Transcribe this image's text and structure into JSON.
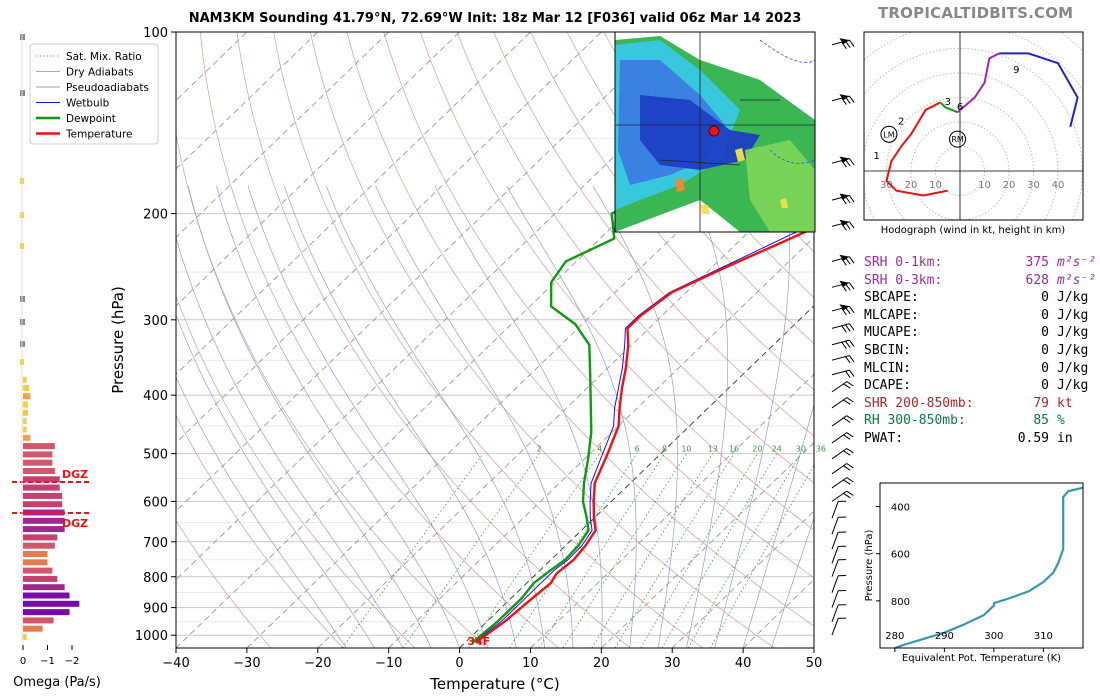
{
  "brand": "TROPICALTIDBITS.COM",
  "stats": [
    {
      "label": "SRH 0-1km:",
      "value": "375",
      "unit": "m²s⁻²",
      "color": "#9b2d9b",
      "italic": true
    },
    {
      "label": "SRH 0-3km:",
      "value": "628",
      "unit": "m²s⁻²",
      "color": "#9b2d9b",
      "italic": true
    },
    {
      "label": "SBCAPE:",
      "value": "0",
      "unit": "J/kg",
      "color": "#000000"
    },
    {
      "label": "MLCAPE:",
      "value": "0",
      "unit": "J/kg",
      "color": "#000000"
    },
    {
      "label": "MUCAPE:",
      "value": "0",
      "unit": "J/kg",
      "color": "#000000"
    },
    {
      "label": "SBCIN:",
      "value": "0",
      "unit": "J/kg",
      "color": "#000000"
    },
    {
      "label": "MLCIN:",
      "value": "0",
      "unit": "J/kg",
      "color": "#000000"
    },
    {
      "label": "DCAPE:",
      "value": "0",
      "unit": "J/kg",
      "color": "#000000"
    },
    {
      "label": "SHR 200-850mb:",
      "value": "79",
      "unit": "kt",
      "color": "#a52a2a"
    },
    {
      "label": "RH 300-850mb:",
      "value": "85",
      "unit": "%",
      "color": "#0a7a40"
    },
    {
      "label": "PWAT:",
      "value": "0.59",
      "unit": "in",
      "color": "#000000"
    }
  ],
  "chart_data": [
    {
      "type": "line",
      "title": "NAM3KM Sounding 41.79°N, 72.69°W Init: 18z Mar 12 [F036] valid 06z Mar 14 2023",
      "xlabel": "Temperature (°C)",
      "ylabel": "Pressure (hPa)",
      "x_ticks": [
        -40,
        -30,
        -20,
        -10,
        0,
        10,
        20,
        30,
        40,
        50
      ],
      "y_ticks": [
        100,
        200,
        300,
        400,
        500,
        600,
        700,
        800,
        900,
        1000
      ],
      "xlim": [
        -40,
        50
      ],
      "ylim": [
        1050,
        100
      ],
      "y_scale": "log",
      "grid": true,
      "legend": [
        "Sat. Mix. Ratio",
        "Dry Adiabats",
        "Pseudoadiabats",
        "Wetbulb",
        "Dewpoint",
        "Temperature"
      ],
      "legend_position": "top-left",
      "colors": {
        "temperature": "#ee1111",
        "dewpoint": "#119911",
        "wetbulb": "#1111ee",
        "dry_adiabat": "#d69a9a",
        "pseudoadiabat": "#9a9ad8",
        "mixing_ratio": "#3a9a3a"
      },
      "mixing_ratio_labels": [
        "2",
        "4",
        "6",
        "8",
        "10",
        "13",
        "16",
        "20",
        "24",
        "30",
        "36"
      ],
      "surface_label": "34F",
      "series": [
        {
          "name": "Temperature",
          "points": [
            [
              1.5,
              1025
            ],
            [
              2.5,
              950
            ],
            [
              3.0,
              870
            ],
            [
              3.4,
              820
            ],
            [
              2.8,
              790
            ],
            [
              3.2,
              750
            ],
            [
              2.8,
              710
            ],
            [
              2.0,
              670
            ],
            [
              0.0,
              640
            ],
            [
              -2.5,
              600
            ],
            [
              -5.0,
              560
            ],
            [
              -7.5,
              500
            ],
            [
              -10.0,
              450
            ],
            [
              -12.5,
              420
            ],
            [
              -15.0,
              390
            ],
            [
              -17.5,
              360
            ],
            [
              -20.5,
              330
            ],
            [
              -23.0,
              310
            ],
            [
              -23.0,
              295
            ],
            [
              -22.0,
              270
            ],
            [
              -18.0,
              245
            ],
            [
              -10.0,
              205
            ],
            [
              -7.0,
              180
            ],
            [
              -4.0,
              160
            ],
            [
              -3.0,
              145
            ],
            [
              0.0,
              125
            ],
            [
              2.0,
              110
            ],
            [
              3.0,
              100
            ]
          ]
        },
        {
          "name": "Dewpoint",
          "points": [
            [
              1.0,
              1025
            ],
            [
              1.5,
              950
            ],
            [
              1.5,
              870
            ],
            [
              1.0,
              820
            ],
            [
              1.5,
              780
            ],
            [
              2.0,
              750
            ],
            [
              1.8,
              710
            ],
            [
              1.0,
              670
            ],
            [
              -1.0,
              640
            ],
            [
              -4.0,
              600
            ],
            [
              -6.5,
              560
            ],
            [
              -9.5,
              510
            ],
            [
              -13.0,
              460
            ],
            [
              -17.5,
              410
            ],
            [
              -21.5,
              370
            ],
            [
              -26.0,
              330
            ],
            [
              -31.0,
              305
            ],
            [
              -37.0,
              285
            ],
            [
              -40.5,
              260
            ],
            [
              -41.5,
              240
            ],
            [
              -38.0,
              220
            ],
            [
              -42.0,
              200
            ],
            [
              -38.0,
              180
            ],
            [
              -36.0,
              150
            ],
            [
              -36.0,
              120
            ],
            [
              -33.0,
              100
            ]
          ]
        },
        {
          "name": "Wetbulb",
          "points": [
            [
              1.2,
              1025
            ],
            [
              2.0,
              950
            ],
            [
              2.0,
              870
            ],
            [
              2.0,
              820
            ],
            [
              2.0,
              780
            ],
            [
              2.4,
              750
            ],
            [
              2.3,
              710
            ],
            [
              1.5,
              670
            ],
            [
              -0.5,
              640
            ],
            [
              -3.0,
              600
            ],
            [
              -5.5,
              560
            ],
            [
              -8.2,
              500
            ],
            [
              -10.7,
              450
            ],
            [
              -13.2,
              420
            ],
            [
              -15.5,
              390
            ],
            [
              -18.0,
              360
            ],
            [
              -21.0,
              330
            ],
            [
              -23.3,
              310
            ],
            [
              -23.3,
              295
            ],
            [
              -22.3,
              270
            ],
            [
              -18.5,
              245
            ],
            [
              -11.5,
              205
            ],
            [
              -6.0,
              175
            ],
            [
              -6.0,
              140
            ],
            [
              -4.0,
              110
            ]
          ]
        }
      ]
    },
    {
      "type": "line",
      "title": "Hodograph (wind in kt, height in km)",
      "rings": [
        10,
        20,
        30,
        40
      ],
      "tick_labels": [
        "30",
        "20",
        "10",
        "10",
        "20",
        "30",
        "40"
      ],
      "storm_motion_labels": [
        "LM",
        "RM"
      ],
      "height_labels": [
        "1",
        "2",
        "3",
        "6",
        "9"
      ],
      "series": [
        {
          "name": "0-3 km",
          "color": "#ee1111",
          "points": [
            [
              -5,
              -8
            ],
            [
              -15,
              -10
            ],
            [
              -26,
              -8
            ],
            [
              -30,
              -4
            ],
            [
              -28,
              4
            ],
            [
              -24,
              10
            ],
            [
              -20,
              15
            ],
            [
              -17,
              20
            ],
            [
              -14,
              25
            ],
            [
              -8,
              28
            ]
          ]
        },
        {
          "name": "3-6 km",
          "color": "#119911",
          "points": [
            [
              -8,
              28
            ],
            [
              -6,
              26
            ],
            [
              -1,
              24
            ]
          ]
        },
        {
          "name": "6-9 km",
          "color": "#aa22aa",
          "points": [
            [
              -1,
              24
            ],
            [
              6,
              30
            ],
            [
              10,
              36
            ],
            [
              12,
              46
            ],
            [
              16,
              48
            ]
          ]
        },
        {
          "name": "9+ km",
          "color": "#2222cc",
          "points": [
            [
              16,
              48
            ],
            [
              28,
              48
            ],
            [
              40,
              44
            ],
            [
              48,
              30
            ],
            [
              45,
              18
            ]
          ]
        }
      ]
    },
    {
      "type": "bar",
      "xlabel": "Omega (Pa/s)",
      "x_ticks": [
        "0",
        "−1",
        "−2"
      ],
      "marker_labels": [
        "DGZ",
        "DGZ"
      ],
      "values": [
        0.15,
        0.8,
        1.25,
        1.9,
        2.3,
        1.9,
        1.7,
        1.4,
        1.2,
        1.0,
        1.0,
        1.3,
        1.4,
        1.7,
        1.7,
        1.7,
        1.6,
        1.6,
        1.5,
        1.5,
        1.3,
        1.2,
        1.2,
        1.3,
        0.3,
        0.15,
        0.15,
        0.2,
        0.2,
        0.3,
        0.25,
        0.15
      ]
    },
    {
      "type": "line",
      "xlabel": "Equivalent Pot. Temperature (K)",
      "ylabel": "Pressure (hPa)",
      "x_ticks": [
        280,
        290,
        300,
        310
      ],
      "y_ticks": [
        400,
        600,
        800
      ],
      "xlim": [
        277,
        318
      ],
      "ylim": [
        1000,
        300
      ],
      "series": [
        {
          "name": "Theta-e",
          "color": "#3399aa",
          "points": [
            [
              280,
              1000
            ],
            [
              282,
              985
            ],
            [
              286,
              960
            ],
            [
              290,
              935
            ],
            [
              294,
              900
            ],
            [
              298,
              860
            ],
            [
              300,
              820
            ],
            [
              300,
              810
            ],
            [
              303,
              790
            ],
            [
              307,
              760
            ],
            [
              310,
              720
            ],
            [
              312,
              680
            ],
            [
              313,
              640
            ],
            [
              314,
              580
            ],
            [
              314,
              520
            ],
            [
              314,
              460
            ],
            [
              314,
              400
            ],
            [
              314,
              360
            ],
            [
              315,
              335
            ],
            [
              318,
              320
            ],
            [
              322,
              310
            ]
          ]
        }
      ]
    }
  ]
}
